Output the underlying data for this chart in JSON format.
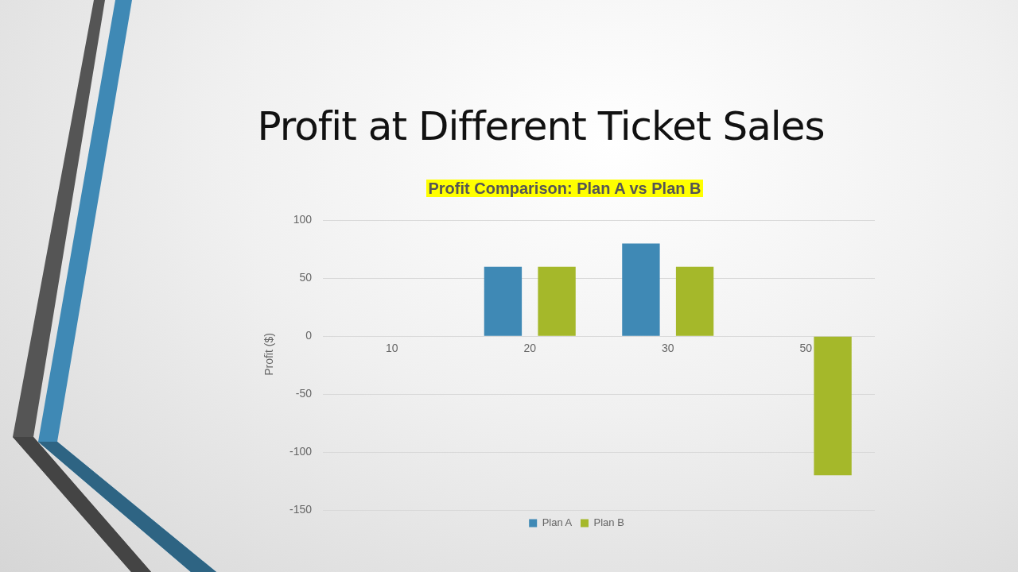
{
  "chart_data": {
    "type": "bar",
    "title": "Profit at Different Ticket Sales",
    "subtitle": "Profit Comparison: Plan A vs Plan B",
    "ylabel": "Profit ($)",
    "categories": [
      "10",
      "20",
      "30",
      "50"
    ],
    "series": [
      {
        "name": "Plan A",
        "color": "#3f89b5",
        "values": [
          0,
          60,
          80,
          0
        ]
      },
      {
        "name": "Plan B",
        "color": "#a5b82a",
        "values": [
          0,
          60,
          60,
          -120
        ]
      }
    ],
    "ylim": [
      -150,
      100
    ],
    "yticks": [
      -150,
      -100,
      -50,
      0,
      50,
      100
    ],
    "grid": "y",
    "legend": "bottom"
  }
}
